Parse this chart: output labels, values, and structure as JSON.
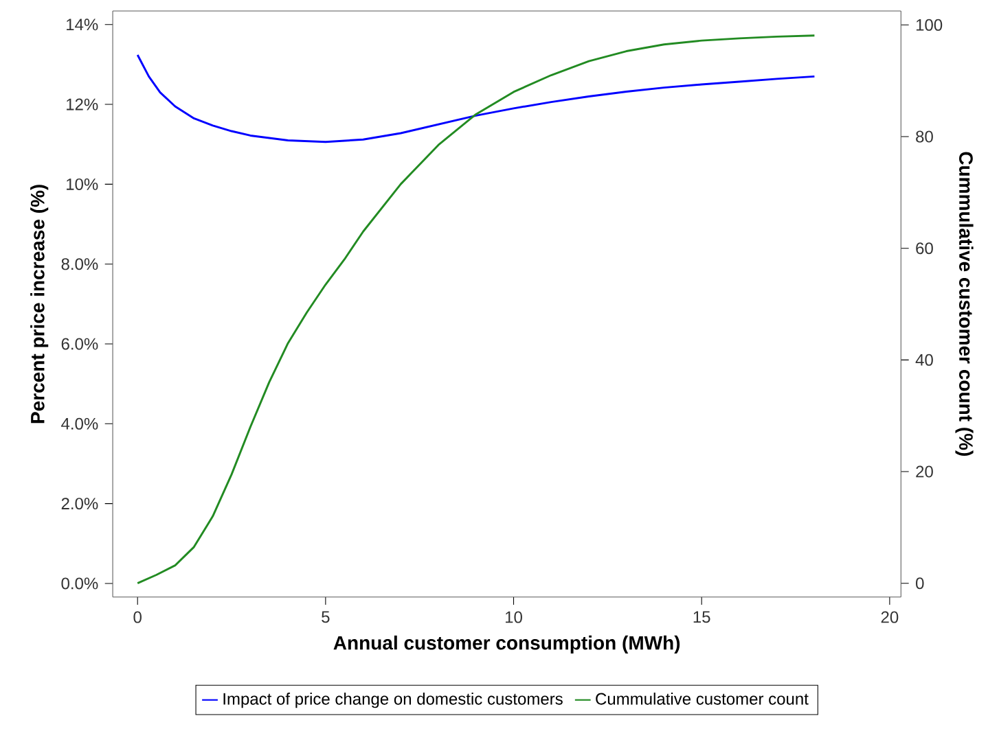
{
  "chart_data": {
    "type": "line",
    "xlabel": "Annual customer consumption (MWh)",
    "ylabel": "Percent price increase (%)",
    "y2label": "Cummulative customer count (%)",
    "xlim": [
      -0.66,
      20.3
    ],
    "xticks": [
      0,
      5,
      10,
      15,
      20
    ],
    "ylim": [
      -0.34,
      14.34
    ],
    "yticks": [
      {
        "value": 0,
        "label": "0.0%"
      },
      {
        "value": 2,
        "label": "2.0%"
      },
      {
        "value": 4,
        "label": "4.0%"
      },
      {
        "value": 6,
        "label": "6.0%"
      },
      {
        "value": 8,
        "label": "8.0%"
      },
      {
        "value": 10,
        "label": "10%"
      },
      {
        "value": 12,
        "label": "12%"
      },
      {
        "value": 14,
        "label": "14%"
      }
    ],
    "y2lim": [
      -2.46,
      102.5
    ],
    "y2ticks": [
      0,
      20,
      40,
      60,
      80,
      100
    ],
    "legend": "bottom",
    "line_style": "solid",
    "marker": "none",
    "series": [
      {
        "name": "Impact of price change on domestic customers",
        "color": "#0000ff",
        "x": [
          0,
          0.3,
          0.6,
          1,
          1.5,
          2,
          2.5,
          3,
          4,
          5,
          6,
          7,
          8,
          9,
          10,
          11,
          12,
          13,
          14,
          15,
          16,
          17,
          18
        ],
        "values": [
          13.24,
          12.7,
          12.3,
          11.95,
          11.65,
          11.47,
          11.33,
          11.22,
          11.1,
          11.06,
          11.12,
          11.28,
          11.5,
          11.72,
          11.9,
          12.06,
          12.2,
          12.32,
          12.42,
          12.5,
          12.57,
          12.64,
          12.7
        ]
      },
      {
        "name": "Cummulative customer count",
        "color": "#228b22",
        "axis": "y2",
        "x": [
          0,
          0.5,
          1,
          1.5,
          2,
          2.5,
          3,
          3.5,
          4,
          4.5,
          5,
          5.5,
          6,
          7,
          8,
          9,
          10,
          11,
          12,
          13,
          14,
          15,
          16,
          17,
          18
        ],
        "values": [
          0,
          1.5,
          3.2,
          6.5,
          12,
          19.5,
          28,
          36,
          43,
          48.5,
          53.5,
          58,
          63,
          71.5,
          78.5,
          84,
          88,
          91,
          93.5,
          95.3,
          96.5,
          97.2,
          97.6,
          97.9,
          98.1
        ]
      }
    ]
  }
}
